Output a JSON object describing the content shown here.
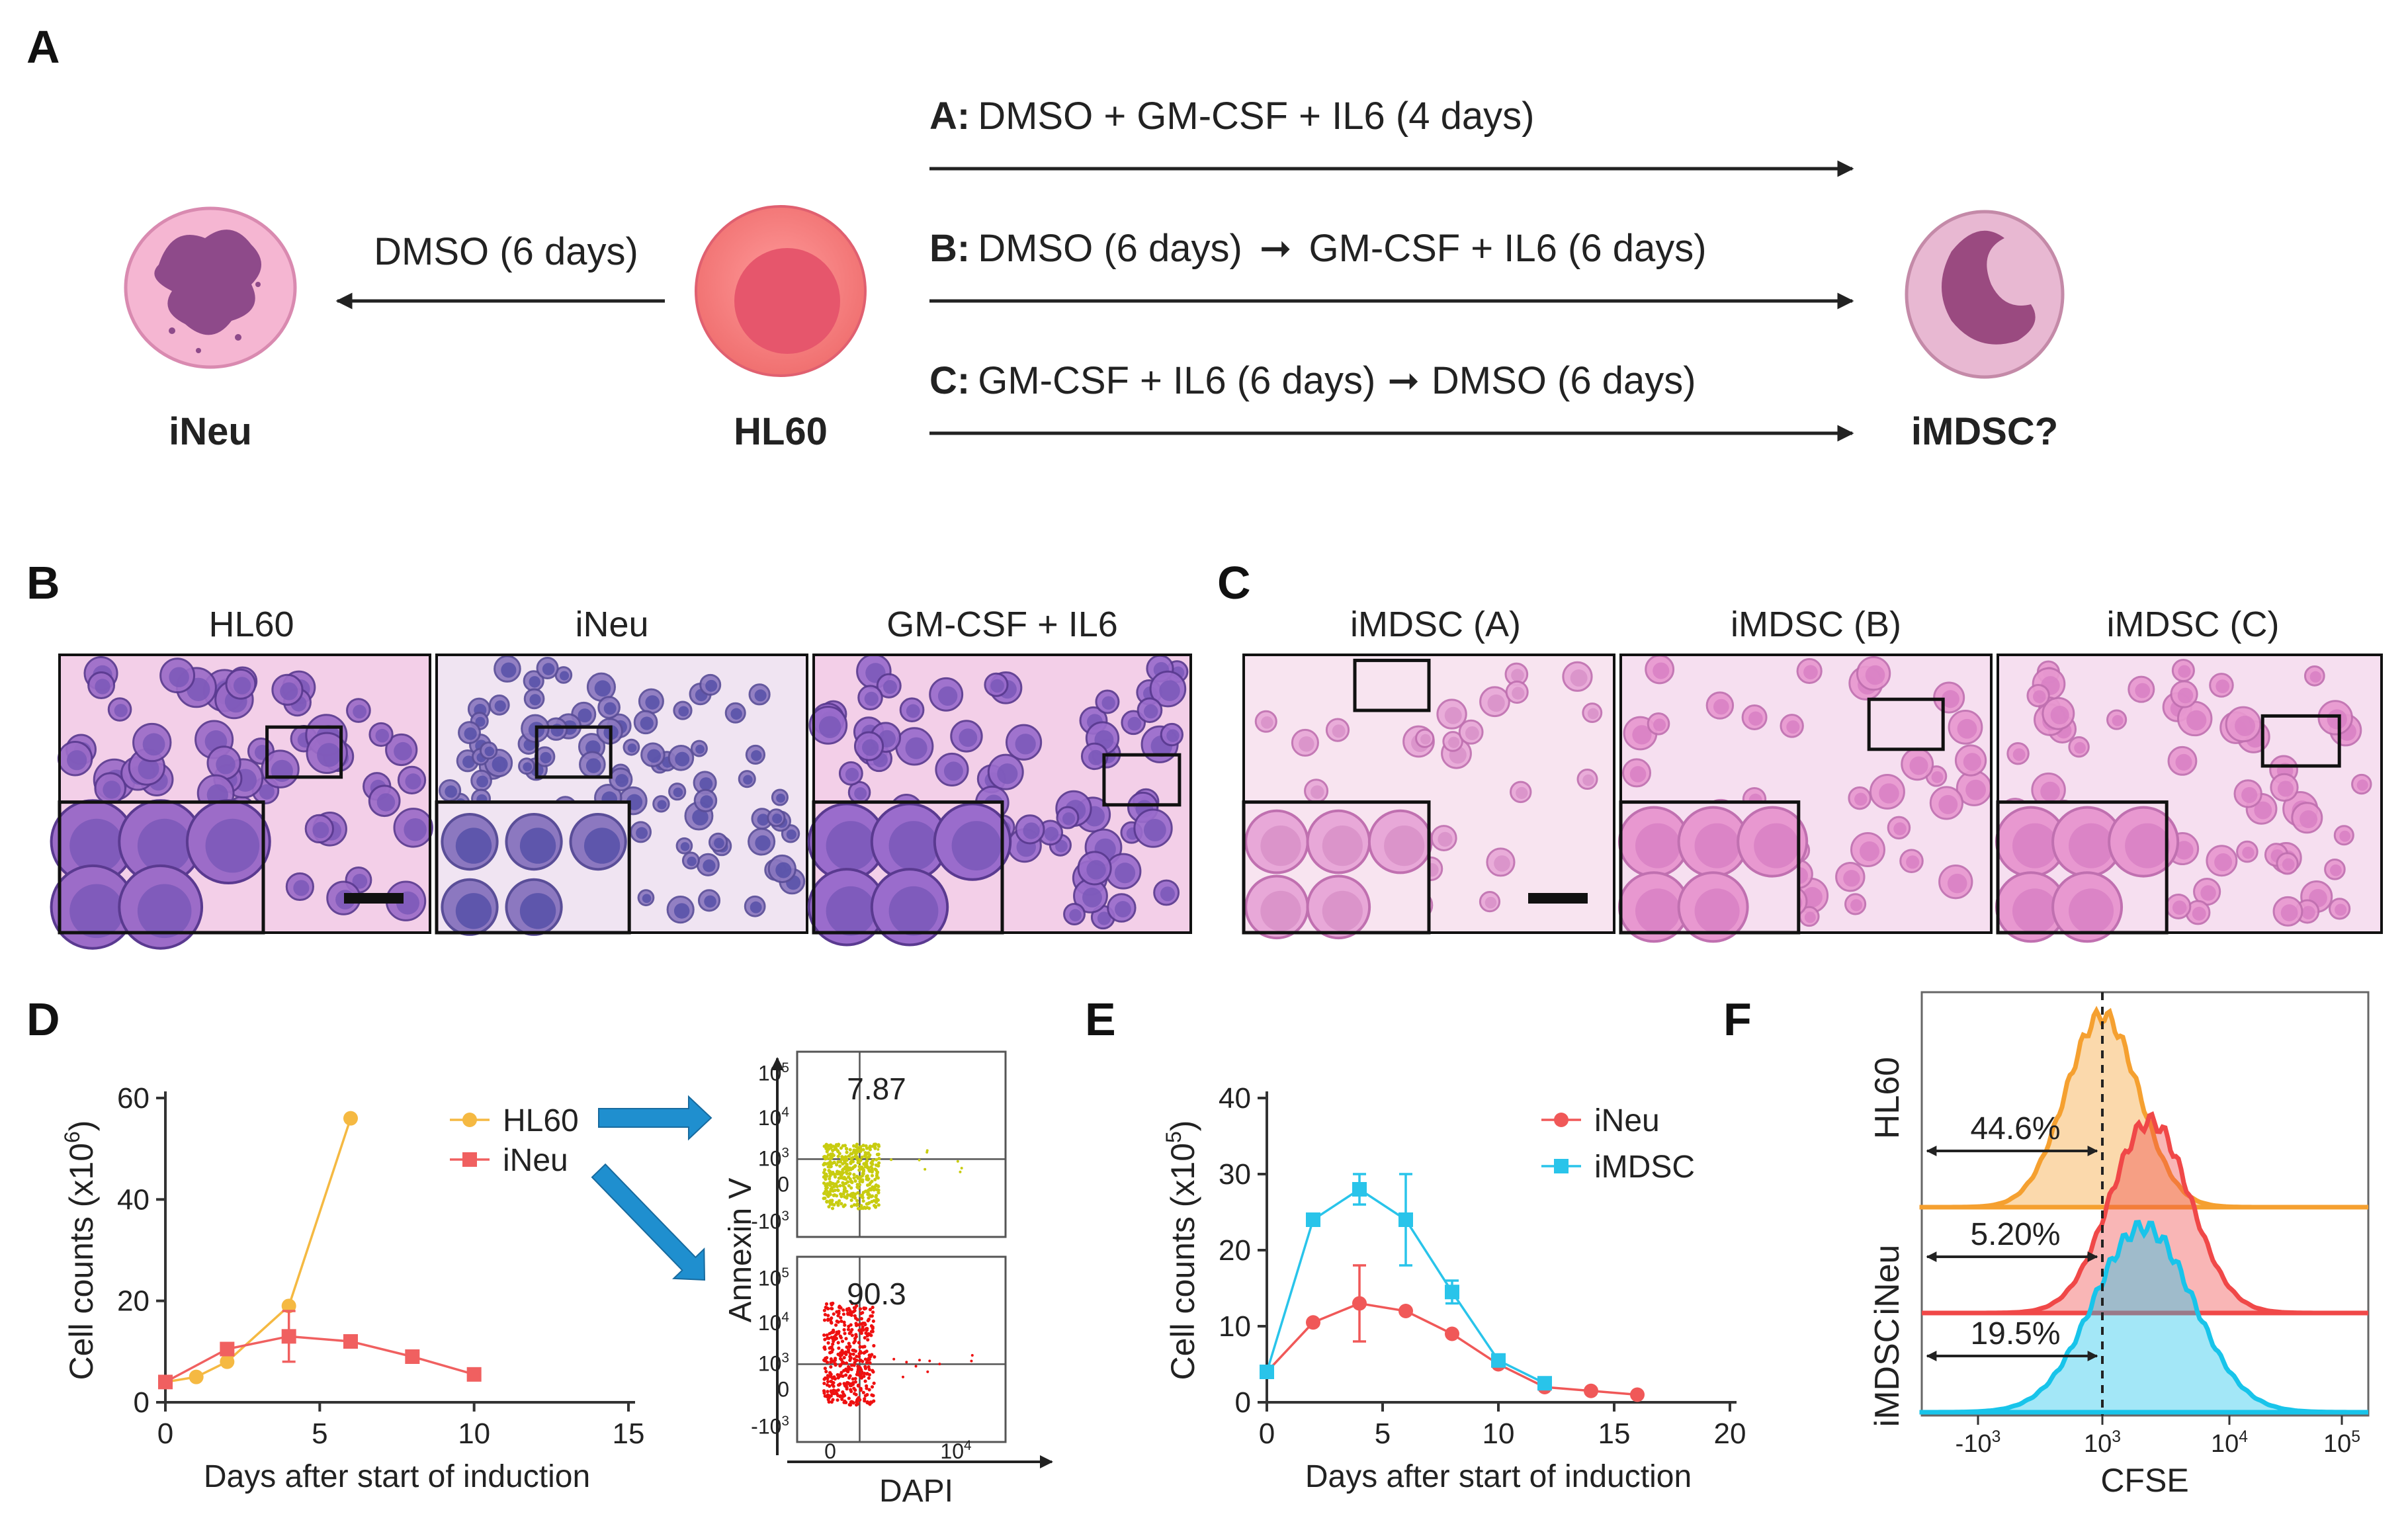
{
  "panels": {
    "a": "A",
    "b": "B",
    "c": "C",
    "d": "D",
    "e": "E",
    "f": "F"
  },
  "panel_a": {
    "left_cell": "iNeu",
    "center_cell": "HL60",
    "right_cell": "iMDSC?",
    "left_arrow_label": "DMSO (6 days)",
    "routes": [
      {
        "key": "A:",
        "text_pre": "DMSO + GM-CSF + IL6 (4 days)",
        "text_post": ""
      },
      {
        "key": "B:",
        "text_pre": "DMSO (6 days)",
        "text_post": "GM-CSF + IL6 (6 days)"
      },
      {
        "key": "C:",
        "text_pre": "GM-CSF + IL6 (6 days)",
        "text_post": "DMSO (6 days)"
      }
    ]
  },
  "panel_b": {
    "titles": [
      "HL60",
      "iNeu",
      "GM-CSF + IL6"
    ]
  },
  "panel_c": {
    "titles": [
      "iMDSC (A)",
      "iMDSC (B)",
      "iMDSC (C)"
    ]
  },
  "chart_data": [
    {
      "id": "D",
      "type": "line",
      "xlabel": "Days after start of induction",
      "ylabel": "Cell counts (x10",
      "ylabel_exp": "6",
      "ylabel_close": ")",
      "xlim": [
        0,
        15
      ],
      "ylim": [
        0,
        60
      ],
      "xticks": [
        "0",
        "5",
        "10",
        "15"
      ],
      "yticks": [
        "0",
        "20",
        "40",
        "60"
      ],
      "series": [
        {
          "name": "HL60",
          "color": "#f5b942",
          "marker": "circle",
          "x": [
            0,
            1,
            2,
            4,
            6
          ],
          "y": [
            4,
            5,
            8,
            19,
            56
          ],
          "err": [
            0,
            0,
            0,
            0,
            0
          ]
        },
        {
          "name": "iNeu",
          "color": "#f06060",
          "marker": "square",
          "x": [
            0,
            2,
            4,
            6,
            8,
            10
          ],
          "y": [
            4,
            10.5,
            13,
            12,
            9,
            5.5
          ],
          "err": [
            0,
            0,
            5,
            0,
            0,
            0
          ]
        }
      ]
    },
    {
      "id": "D-flow",
      "type": "scatter",
      "xlabel": "DAPI",
      "ylabel": "Annexin V",
      "plots": [
        {
          "name": "HL60",
          "color": "#c8cc10",
          "percent": "7.87"
        },
        {
          "name": "iNeu",
          "color": "#ee1010",
          "percent": "90.3"
        }
      ],
      "xticks": [
        "0",
        "10",
        "4"
      ],
      "yticks": [
        [
          "10",
          "5"
        ],
        [
          "10",
          "4"
        ],
        [
          "10",
          "3"
        ],
        [
          "0",
          ""
        ],
        [
          "-10",
          "3"
        ]
      ]
    },
    {
      "id": "E",
      "type": "line",
      "xlabel": "Days after start of induction",
      "ylabel": "Cell counts (x10",
      "ylabel_exp": "5",
      "ylabel_close": ")",
      "xlim": [
        0,
        20
      ],
      "ylim": [
        0,
        40
      ],
      "xticks": [
        "0",
        "5",
        "10",
        "15",
        "20"
      ],
      "yticks": [
        "0",
        "10",
        "20",
        "30",
        "40"
      ],
      "series": [
        {
          "name": "iNeu",
          "color": "#f05858",
          "marker": "circle",
          "x": [
            0,
            2,
            4,
            6,
            8,
            10,
            12,
            14,
            16
          ],
          "y": [
            4,
            10.5,
            13,
            12,
            9,
            5,
            2,
            1.5,
            1
          ],
          "err": [
            0,
            0,
            5,
            0,
            0,
            0,
            0,
            0,
            0
          ]
        },
        {
          "name": "iMDSC",
          "color": "#29c4ea",
          "marker": "square",
          "x": [
            0,
            2,
            4,
            6,
            8,
            10,
            12
          ],
          "y": [
            4,
            24,
            28,
            24,
            14.5,
            5.5,
            2.5
          ],
          "err": [
            0,
            0,
            2,
            6,
            1.5,
            0,
            0
          ]
        }
      ]
    },
    {
      "id": "F",
      "type": "area",
      "xlabel": "CFSE",
      "row_labels": [
        "HL60",
        "iNeu",
        "iMDSC"
      ],
      "xticks": [
        [
          "-10",
          "3"
        ],
        [
          "10",
          "3"
        ],
        [
          "10",
          "4"
        ],
        [
          "10",
          "5"
        ]
      ],
      "series": [
        {
          "name": "HL60",
          "color": "#f5a030",
          "percent": "44.6%"
        },
        {
          "name": "iNeu",
          "color": "#f04848",
          "percent": "5.20%"
        },
        {
          "name": "iMDSC",
          "color": "#18c4ea",
          "percent": "19.5%"
        }
      ]
    }
  ]
}
